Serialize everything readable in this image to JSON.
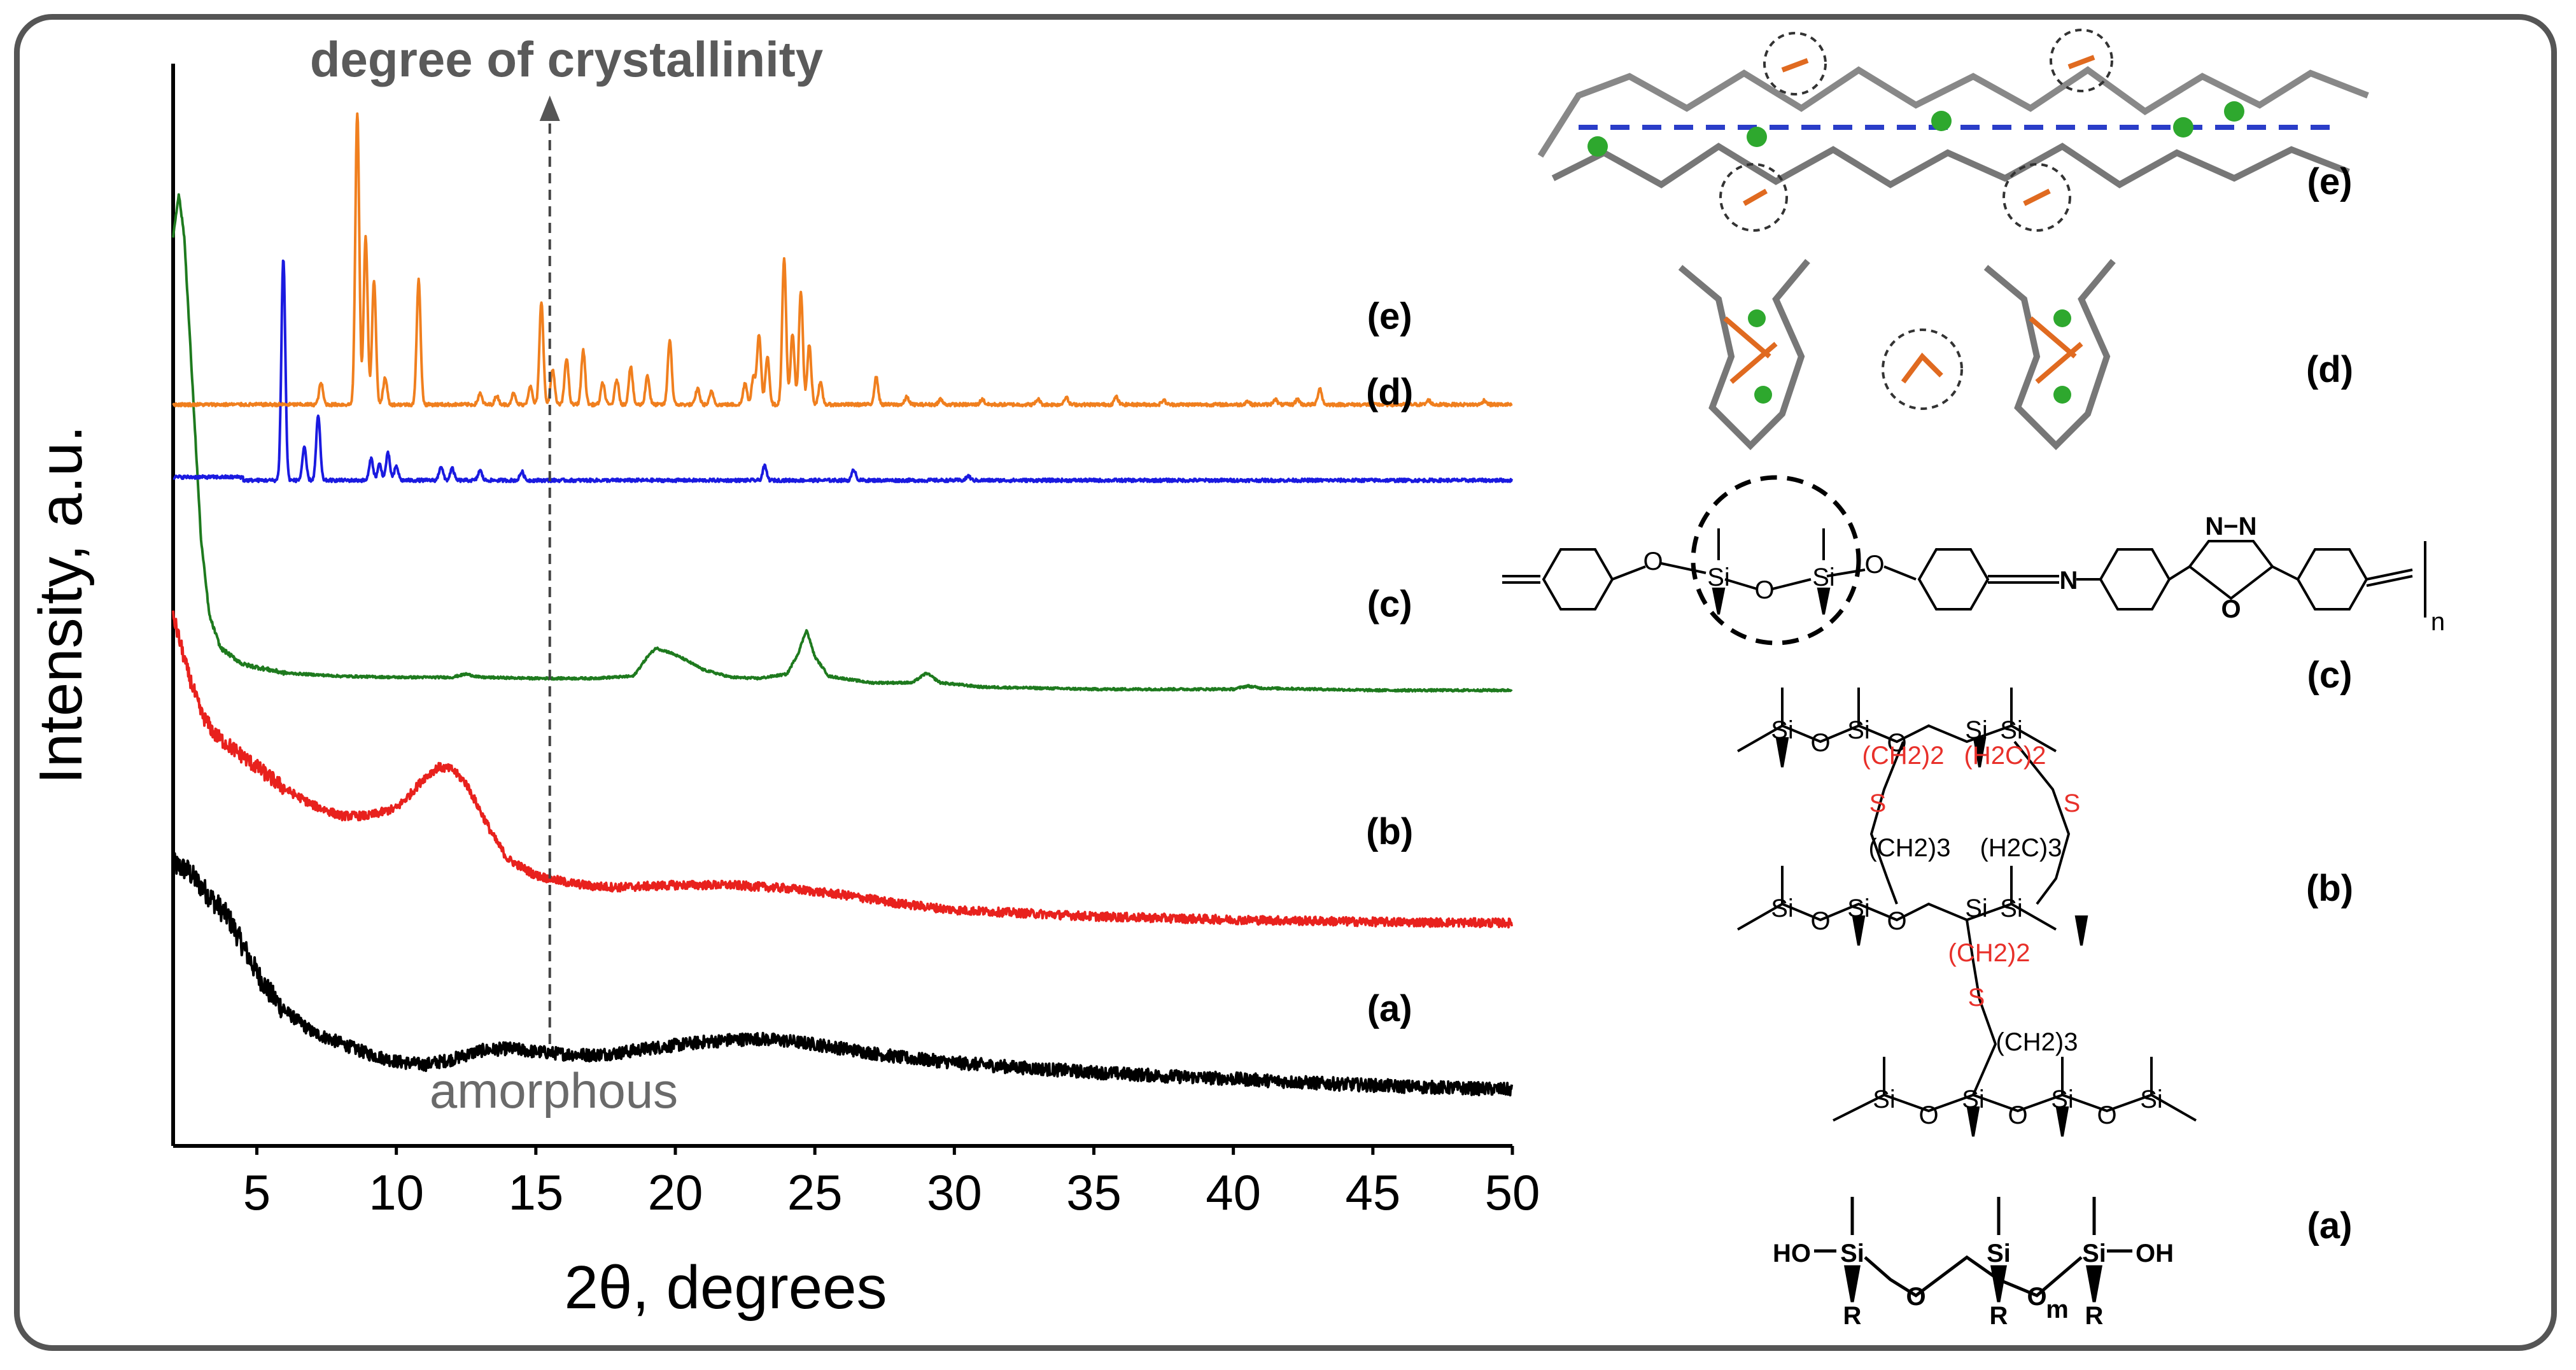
{
  "chart_data": {
    "type": "line",
    "title": "",
    "xlabel": "2θ, degrees",
    "ylabel": "Intensity, a.u.",
    "xlim": [
      2,
      50
    ],
    "ylim": [
      0,
      1
    ],
    "x_ticks": [
      5,
      10,
      15,
      20,
      25,
      30,
      35,
      40,
      45,
      50
    ],
    "grid": false,
    "legend": "none",
    "annotations": {
      "top": "degree of crystallinity",
      "bottom": "amorphous",
      "marker_x": 15.5
    },
    "series": [
      {
        "name": "(a)",
        "color": "#000000",
        "style": "amorphous-noisy",
        "points": [
          [
            2,
            0.26
          ],
          [
            2.5,
            0.255
          ],
          [
            3,
            0.24
          ],
          [
            3.5,
            0.225
          ],
          [
            4,
            0.21
          ],
          [
            4.5,
            0.185
          ],
          [
            5,
            0.16
          ],
          [
            5.5,
            0.14
          ],
          [
            6,
            0.125
          ],
          [
            7,
            0.105
          ],
          [
            8,
            0.095
          ],
          [
            9,
            0.085
          ],
          [
            10,
            0.078
          ],
          [
            11,
            0.075
          ],
          [
            12,
            0.08
          ],
          [
            13,
            0.088
          ],
          [
            14,
            0.09
          ],
          [
            15,
            0.087
          ],
          [
            16,
            0.085
          ],
          [
            17,
            0.084
          ],
          [
            18,
            0.086
          ],
          [
            19,
            0.09
          ],
          [
            20,
            0.093
          ],
          [
            21,
            0.096
          ],
          [
            22,
            0.098
          ],
          [
            23,
            0.099
          ],
          [
            24,
            0.097
          ],
          [
            25,
            0.094
          ],
          [
            26,
            0.09
          ],
          [
            27,
            0.086
          ],
          [
            28,
            0.082
          ],
          [
            30,
            0.077
          ],
          [
            32,
            0.073
          ],
          [
            35,
            0.068
          ],
          [
            38,
            0.064
          ],
          [
            40,
            0.062
          ],
          [
            43,
            0.058
          ],
          [
            46,
            0.055
          ],
          [
            50,
            0.052
          ]
        ]
      },
      {
        "name": "(b)",
        "color": "#e8211d",
        "style": "amorphous-noisy",
        "points": [
          [
            2,
            0.49
          ],
          [
            2.5,
            0.44
          ],
          [
            3,
            0.4
          ],
          [
            3.5,
            0.38
          ],
          [
            4,
            0.37
          ],
          [
            4.5,
            0.36
          ],
          [
            5,
            0.35
          ],
          [
            6,
            0.33
          ],
          [
            7,
            0.315
          ],
          [
            8,
            0.305
          ],
          [
            9,
            0.305
          ],
          [
            10,
            0.312
          ],
          [
            10.5,
            0.325
          ],
          [
            11,
            0.34
          ],
          [
            11.5,
            0.35
          ],
          [
            12,
            0.348
          ],
          [
            12.5,
            0.335
          ],
          [
            13,
            0.31
          ],
          [
            13.5,
            0.285
          ],
          [
            14,
            0.265
          ],
          [
            15,
            0.25
          ],
          [
            16,
            0.244
          ],
          [
            17,
            0.24
          ],
          [
            18,
            0.239
          ],
          [
            19,
            0.24
          ],
          [
            20,
            0.241
          ],
          [
            22,
            0.241
          ],
          [
            24,
            0.238
          ],
          [
            26,
            0.232
          ],
          [
            28,
            0.224
          ],
          [
            30,
            0.218
          ],
          [
            35,
            0.212
          ],
          [
            40,
            0.209
          ],
          [
            45,
            0.207
          ],
          [
            50,
            0.206
          ]
        ]
      },
      {
        "name": "(c)",
        "color": "#1e7a1e",
        "style": "semicrystalline",
        "points": [
          [
            2,
            0.84
          ],
          [
            2.2,
            0.88
          ],
          [
            2.4,
            0.84
          ],
          [
            2.7,
            0.7
          ],
          [
            3,
            0.56
          ],
          [
            3.3,
            0.49
          ],
          [
            3.7,
            0.46
          ],
          [
            4.5,
            0.445
          ],
          [
            6,
            0.437
          ],
          [
            8,
            0.434
          ],
          [
            10,
            0.433
          ],
          [
            12,
            0.433
          ],
          [
            12.5,
            0.436
          ],
          [
            13,
            0.433
          ],
          [
            15,
            0.432
          ],
          [
            17,
            0.432
          ],
          [
            18.5,
            0.434
          ],
          [
            19,
            0.452
          ],
          [
            19.3,
            0.46
          ],
          [
            19.8,
            0.456
          ],
          [
            20.3,
            0.45
          ],
          [
            21,
            0.44
          ],
          [
            22,
            0.433
          ],
          [
            23,
            0.432
          ],
          [
            24,
            0.436
          ],
          [
            24.4,
            0.455
          ],
          [
            24.7,
            0.477
          ],
          [
            25,
            0.452
          ],
          [
            25.5,
            0.434
          ],
          [
            27,
            0.428
          ],
          [
            28.5,
            0.428
          ],
          [
            29,
            0.437
          ],
          [
            29.5,
            0.428
          ],
          [
            31,
            0.424
          ],
          [
            35,
            0.422
          ],
          [
            40,
            0.422
          ],
          [
            40.5,
            0.425
          ],
          [
            41,
            0.423
          ],
          [
            45,
            0.421
          ],
          [
            50,
            0.421
          ]
        ]
      },
      {
        "name": "(d)",
        "color": "#1a1ae0",
        "style": "crystalline",
        "baseline": 0.615,
        "baseline_start": 0.618,
        "peaks": [
          [
            5.95,
            0.82
          ],
          [
            6.7,
            0.645
          ],
          [
            7.2,
            0.675
          ],
          [
            9.1,
            0.635
          ],
          [
            9.4,
            0.63
          ],
          [
            9.7,
            0.64
          ],
          [
            10.0,
            0.628
          ],
          [
            11.6,
            0.628
          ],
          [
            12.0,
            0.626
          ],
          [
            13.0,
            0.624
          ],
          [
            14.5,
            0.623
          ],
          [
            23.2,
            0.628
          ],
          [
            26.4,
            0.625
          ],
          [
            30.5,
            0.619
          ]
        ]
      },
      {
        "name": "(e)",
        "color": "#f07f1e",
        "style": "crystalline",
        "baseline": 0.685,
        "baseline_start": 0.685,
        "peaks": [
          [
            7.3,
            0.705
          ],
          [
            8.6,
            0.955
          ],
          [
            8.9,
            0.84
          ],
          [
            9.2,
            0.8
          ],
          [
            9.6,
            0.71
          ],
          [
            10.8,
            0.8
          ],
          [
            13.0,
            0.695
          ],
          [
            13.6,
            0.693
          ],
          [
            14.2,
            0.695
          ],
          [
            14.8,
            0.702
          ],
          [
            15.2,
            0.78
          ],
          [
            15.6,
            0.718
          ],
          [
            16.1,
            0.728
          ],
          [
            16.7,
            0.735
          ],
          [
            17.4,
            0.705
          ],
          [
            17.9,
            0.708
          ],
          [
            18.4,
            0.72
          ],
          [
            19.0,
            0.712
          ],
          [
            19.8,
            0.745
          ],
          [
            20.8,
            0.7
          ],
          [
            21.3,
            0.697
          ],
          [
            22.5,
            0.705
          ],
          [
            22.8,
            0.71
          ],
          [
            23.0,
            0.75
          ],
          [
            23.3,
            0.73
          ],
          [
            23.9,
            0.82
          ],
          [
            24.2,
            0.75
          ],
          [
            24.5,
            0.79
          ],
          [
            24.8,
            0.74
          ],
          [
            25.2,
            0.705
          ],
          [
            27.2,
            0.71
          ],
          [
            28.3,
            0.692
          ],
          [
            29.5,
            0.69
          ],
          [
            31.0,
            0.69
          ],
          [
            33.0,
            0.69
          ],
          [
            34.0,
            0.692
          ],
          [
            35.8,
            0.692
          ],
          [
            37.5,
            0.689
          ],
          [
            40.5,
            0.688
          ],
          [
            41.5,
            0.69
          ],
          [
            42.3,
            0.69
          ],
          [
            43.1,
            0.7
          ],
          [
            47.0,
            0.689
          ],
          [
            49.0,
            0.689
          ]
        ]
      }
    ]
  },
  "structures": {
    "labels": [
      "(e)",
      "(d)",
      "(c)",
      "(b)",
      "(a)"
    ],
    "chem_text": {
      "si": "Si",
      "o": "O",
      "oh": "OH",
      "ho": "HO",
      "r": "R",
      "m": "m",
      "n": "n",
      "s": "S",
      "n_atom": "N",
      "nn": "N−N",
      "ch2_2": "(CH2)2",
      "h2c_2": "(H2C)2",
      "ch2_3": "(CH2)3",
      "h2c_3": "(H2C)3"
    }
  }
}
